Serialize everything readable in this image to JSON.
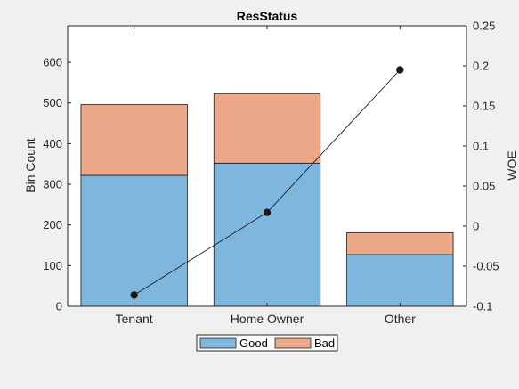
{
  "colors": {
    "background": "#f0f0f0",
    "axes_background": "#ffffff",
    "good": "#7eb6dd",
    "bad": "#eca98a",
    "line": "#1a1a1a",
    "axis": "#262626"
  },
  "chart_data": {
    "type": "bar",
    "stacked": true,
    "title": "ResStatus",
    "categories": [
      "Tenant",
      "Home Owner",
      "Other"
    ],
    "series": [
      {
        "name": "Good",
        "values": [
          322,
          352,
          127
        ]
      },
      {
        "name": "Bad",
        "values": [
          174,
          171,
          54
        ]
      }
    ],
    "overlay_line": {
      "axis": "right",
      "marker": "filled-circle",
      "values": [
        -0.086,
        0.017,
        0.195
      ]
    },
    "ylabel": "Bin Count",
    "ylim": [
      0,
      690
    ],
    "yticks": [
      0,
      100,
      200,
      300,
      400,
      500,
      600
    ],
    "ylabel_right": "WOE",
    "ylim_right": [
      -0.1,
      0.25
    ],
    "yticks_right": [
      -0.1,
      -0.05,
      0,
      0.05,
      0.1,
      0.15,
      0.2,
      0.25
    ],
    "yticklabels_right": [
      "-0.1",
      "-0.05",
      "0",
      "0.05",
      "0.1",
      "0.15",
      "0.2",
      "0.25"
    ],
    "legend": {
      "placement": "bottom-center",
      "orientation": "horizontal"
    },
    "grid": false
  }
}
